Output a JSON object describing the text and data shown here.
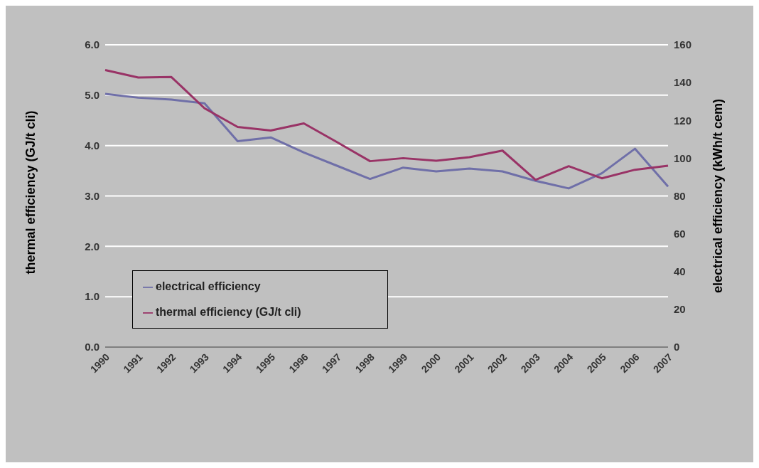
{
  "chart_data": {
    "type": "line",
    "ylabel": "thermal efficiency (GJ/t cli)",
    "y2label": "electrical efficiency (kWh/t cem)",
    "categories": [
      "1990",
      "1991",
      "1992",
      "1993",
      "1994",
      "1995",
      "1996",
      "1997",
      "1998",
      "1999",
      "2000",
      "2001",
      "2002",
      "2003",
      "2004",
      "2005",
      "2006",
      "2007"
    ],
    "series": [
      {
        "name": "electrical efficiency",
        "color": "#6f6fa8",
        "axis": "y2",
        "values": [
          134,
          132,
          131,
          129,
          109,
          111,
          103,
          96,
          89,
          95,
          93,
          94.5,
          93,
          88,
          84,
          92,
          105,
          85
        ]
      },
      {
        "name": "thermal efficiency (GJ/t cli)",
        "color": "#993366",
        "values": [
          5.5,
          5.35,
          5.36,
          4.74,
          4.37,
          4.3,
          4.44,
          4.07,
          3.69,
          3.75,
          3.7,
          3.77,
          3.9,
          3.32,
          3.59,
          3.35,
          3.52,
          3.6
        ]
      }
    ],
    "ylim": [
      0,
      6
    ],
    "yticks": [
      {
        "value": 0,
        "label": "0.0"
      },
      {
        "value": 1,
        "label": "1.0"
      },
      {
        "value": 2,
        "label": "2.0"
      },
      {
        "value": 3,
        "label": "3.0"
      },
      {
        "value": 4,
        "label": "4.0"
      },
      {
        "value": 5,
        "label": "5.0"
      },
      {
        "value": 6,
        "label": "6.0"
      }
    ],
    "y2lim": [
      0,
      160
    ],
    "y2ticks": [
      0,
      20,
      40,
      60,
      80,
      100,
      120,
      140,
      160
    ],
    "grid": "y",
    "legend": "bottom left",
    "marker": "none",
    "line_style": "solid"
  }
}
